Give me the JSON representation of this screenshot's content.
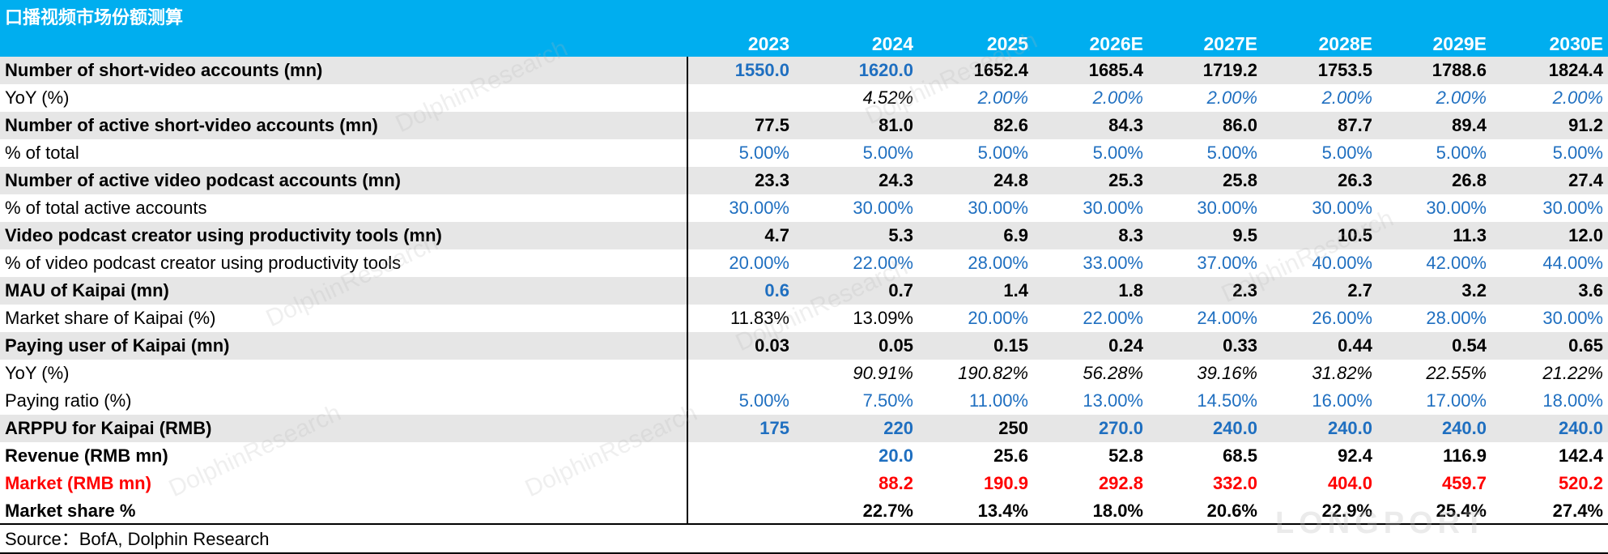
{
  "title": "口播视频市场份额测算",
  "years": [
    "2023",
    "2024",
    "2025",
    "2026E",
    "2027E",
    "2028E",
    "2029E",
    "2030E"
  ],
  "rows": [
    {
      "label": "Number of short-video accounts (mn)",
      "values": [
        "1550.0",
        "1620.0",
        "1652.4",
        "1685.4",
        "1719.2",
        "1753.5",
        "1788.6",
        "1824.4"
      ]
    },
    {
      "label": "YoY (%)",
      "values": [
        "",
        "4.52%",
        "2.00%",
        "2.00%",
        "2.00%",
        "2.00%",
        "2.00%",
        "2.00%"
      ]
    },
    {
      "label": "Number of active short-video accounts (mn)",
      "values": [
        "77.5",
        "81.0",
        "82.6",
        "84.3",
        "86.0",
        "87.7",
        "89.4",
        "91.2"
      ]
    },
    {
      "label": "% of total",
      "values": [
        "5.00%",
        "5.00%",
        "5.00%",
        "5.00%",
        "5.00%",
        "5.00%",
        "5.00%",
        "5.00%"
      ]
    },
    {
      "label": "Number of active video podcast accounts (mn)",
      "values": [
        "23.3",
        "24.3",
        "24.8",
        "25.3",
        "25.8",
        "26.3",
        "26.8",
        "27.4"
      ]
    },
    {
      "label": "% of total active accounts",
      "values": [
        "30.00%",
        "30.00%",
        "30.00%",
        "30.00%",
        "30.00%",
        "30.00%",
        "30.00%",
        "30.00%"
      ]
    },
    {
      "label": "Video podcast creator using productivity tools (mn)",
      "values": [
        "4.7",
        "5.3",
        "6.9",
        "8.3",
        "9.5",
        "10.5",
        "11.3",
        "12.0"
      ]
    },
    {
      "label": "% of video podcast creator using productivity tools",
      "values": [
        "20.00%",
        "22.00%",
        "28.00%",
        "33.00%",
        "37.00%",
        "40.00%",
        "42.00%",
        "44.00%"
      ]
    },
    {
      "label": "MAU of Kaipai (mn)",
      "values": [
        "0.6",
        "0.7",
        "1.4",
        "1.8",
        "2.3",
        "2.7",
        "3.2",
        "3.6"
      ]
    },
    {
      "label": "Market share of Kaipai (%)",
      "values": [
        "11.83%",
        "13.09%",
        "20.00%",
        "22.00%",
        "24.00%",
        "26.00%",
        "28.00%",
        "30.00%"
      ]
    },
    {
      "label": "Paying user of Kaipai (mn)",
      "values": [
        "0.03",
        "0.05",
        "0.15",
        "0.24",
        "0.33",
        "0.44",
        "0.54",
        "0.65"
      ]
    },
    {
      "label": "YoY (%)",
      "values": [
        "",
        "90.91%",
        "190.82%",
        "56.28%",
        "39.16%",
        "31.82%",
        "22.55%",
        "21.22%"
      ]
    },
    {
      "label": "Paying ratio (%)",
      "values": [
        "5.00%",
        "7.50%",
        "11.00%",
        "13.00%",
        "14.50%",
        "16.00%",
        "17.00%",
        "18.00%"
      ]
    },
    {
      "label": "ARPPU for Kaipai (RMB)",
      "values": [
        "175",
        "220",
        "250",
        "270.0",
        "240.0",
        "240.0",
        "240.0",
        "240.0"
      ]
    },
    {
      "label": "Revenue (RMB mn)",
      "values": [
        "",
        "20.0",
        "25.6",
        "52.8",
        "68.5",
        "92.4",
        "116.9",
        "142.4"
      ]
    },
    {
      "label": "Market (RMB mn)",
      "values": [
        "",
        "88.2",
        "190.9",
        "292.8",
        "332.0",
        "404.0",
        "459.7",
        "520.2"
      ]
    },
    {
      "label": "Market share %",
      "values": [
        "",
        "22.7%",
        "13.4%",
        "18.0%",
        "20.6%",
        "22.9%",
        "25.4%",
        "27.4%"
      ]
    }
  ],
  "source": "Source：BofA, Dolphin Research",
  "watermark": "DolphinResearch",
  "logo_text": "LONGPORT",
  "colors": {
    "header_bg": "#00aeef",
    "shade": "#e6e6e6",
    "blue": "#1f6fc0",
    "red": "#ff0000"
  }
}
